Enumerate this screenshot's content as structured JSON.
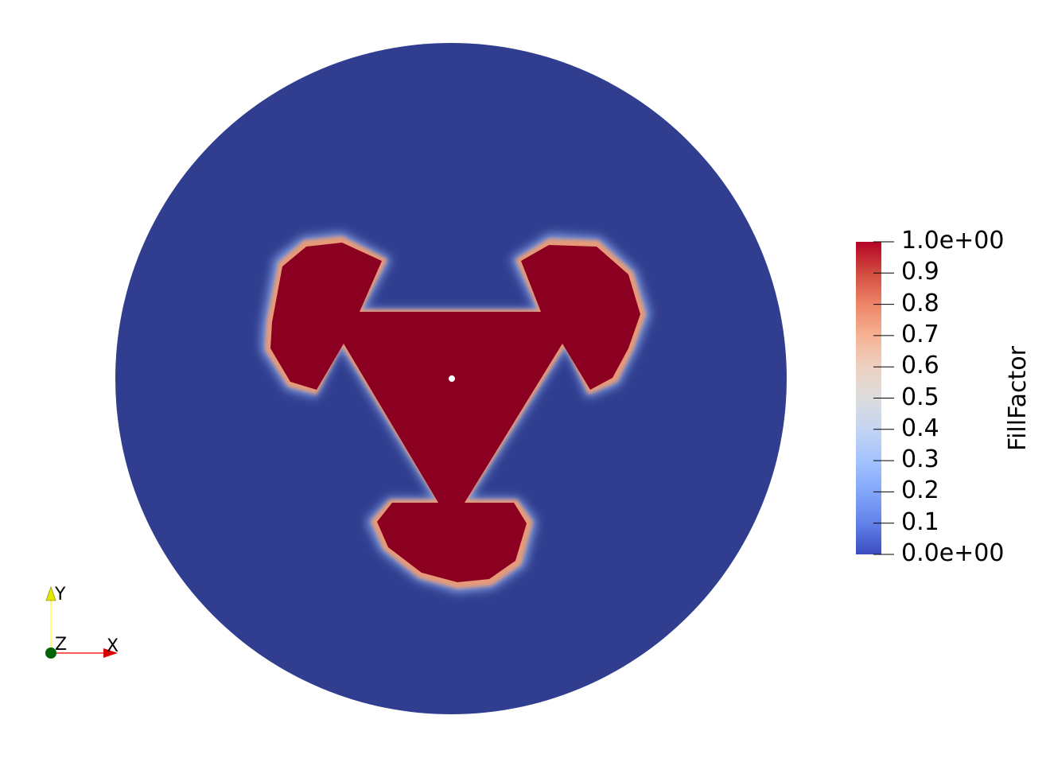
{
  "scalar_bar": {
    "title": "FillFactor",
    "ticks": [
      "1.0e+00",
      "0.9",
      "0.8",
      "0.7",
      "0.6",
      "0.5",
      "0.4",
      "0.3",
      "0.2",
      "0.1",
      "0.0e+00"
    ],
    "range": [
      0,
      1
    ],
    "colormap": [
      "#b40426",
      "#d24b40",
      "#ee8468",
      "#f6b293",
      "#edd1c2",
      "#dddcdc",
      "#c4d5f3",
      "#a3c2fe",
      "#82a6fb",
      "#6282ea",
      "#3b4cc0"
    ]
  },
  "axes": {
    "x_label": "X",
    "y_label": "Y",
    "z_label": "Z",
    "x_color": "#ff0000",
    "y_color": "#ffff00",
    "z_color": "#006400"
  },
  "scene": {
    "background": "#ffffff",
    "domain_color": "#313e90",
    "filled_color": "#8b0020",
    "center_marker": "#ffffff"
  }
}
